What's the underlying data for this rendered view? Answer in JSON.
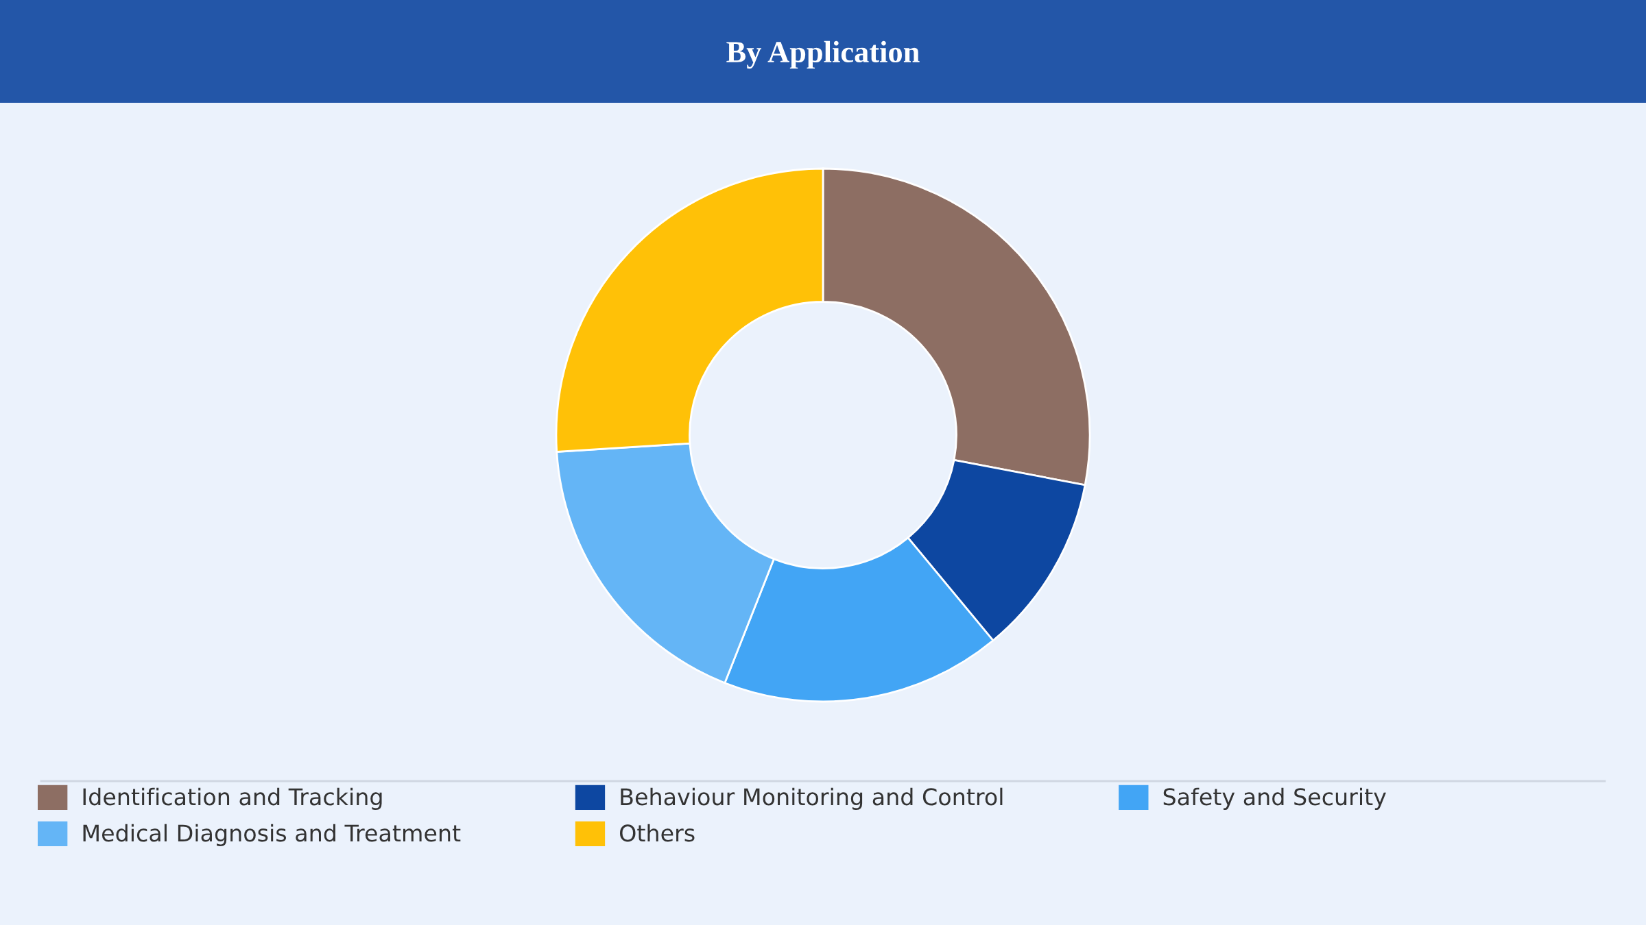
{
  "chart_data": {
    "type": "donut",
    "title": "By Application",
    "categories": [
      "Identification and Tracking",
      "Behaviour Monitoring and Control",
      "Safety and Security",
      "Medical Diagnosis and Treatment",
      "Others"
    ],
    "values": [
      28,
      11,
      17,
      18,
      26
    ],
    "colors": [
      "#8d6e63",
      "#0d47a1",
      "#42a5f5",
      "#64b5f6",
      "#ffc107"
    ],
    "legend": "bottom"
  }
}
